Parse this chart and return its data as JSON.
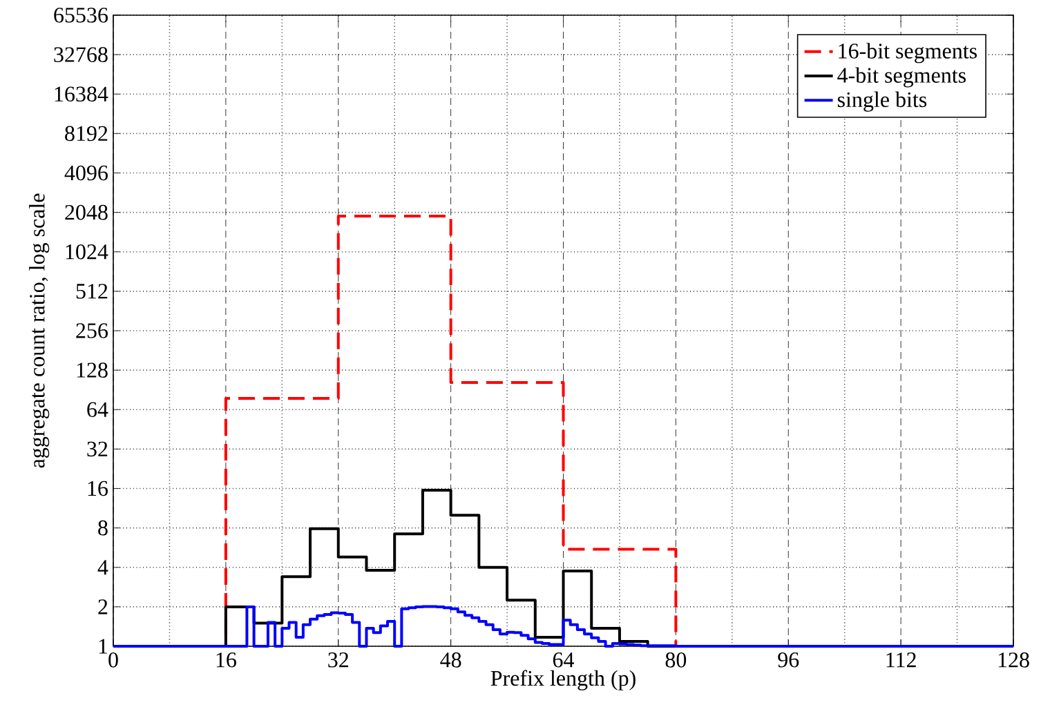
{
  "chart_data": {
    "type": "step",
    "xlabel": "Prefix length (p)",
    "ylabel": "aggregate count ratio, log scale",
    "xlim": [
      0,
      128
    ],
    "xticks": [
      0,
      16,
      32,
      48,
      64,
      80,
      96,
      112,
      128
    ],
    "ylim": [
      1,
      65536
    ],
    "yticks": [
      1,
      2,
      4,
      8,
      16,
      32,
      64,
      128,
      256,
      512,
      1024,
      2048,
      4096,
      8192,
      16384,
      32768,
      65536
    ],
    "log": "y",
    "grid": true,
    "legend": "top right",
    "marker": "none",
    "series": [
      {
        "name": "16-bit segments",
        "color": "#ff0000",
        "line_style": "dashed",
        "x": [
          0,
          16,
          32,
          48,
          64,
          80
        ],
        "values": [
          1,
          78,
          1920,
          103,
          5.5,
          1
        ]
      },
      {
        "name": "4-bit segments",
        "color": "#000000",
        "line_style": "solid",
        "x": [
          0,
          16,
          20,
          24,
          28,
          32,
          36,
          40,
          44,
          48,
          52,
          56,
          60,
          64,
          68,
          72,
          76,
          128
        ],
        "values": [
          1,
          2,
          1.5,
          3.4,
          7.9,
          4.8,
          3.8,
          7.2,
          15.5,
          10,
          4,
          2.25,
          1.17,
          3.75,
          1.37,
          1.09,
          1,
          1
        ]
      },
      {
        "name": "single bits",
        "color": "#0000ff",
        "line_style": "solid",
        "x": [
          0,
          19,
          20,
          22,
          23,
          24,
          25,
          26,
          27,
          28,
          29,
          30,
          31,
          32,
          33,
          34,
          35,
          36,
          37,
          38,
          39,
          40,
          41,
          42,
          43,
          44,
          45,
          46,
          47,
          48,
          49,
          50,
          51,
          52,
          53,
          54,
          55,
          56,
          57,
          58,
          59,
          60,
          61,
          62,
          63,
          64,
          65,
          66,
          67,
          68,
          69,
          70,
          71,
          72,
          73,
          74,
          75,
          80,
          128
        ],
        "values": [
          1,
          2,
          1,
          1.52,
          1,
          1.37,
          1.52,
          1.17,
          1.46,
          1.61,
          1.71,
          1.75,
          1.8,
          1.79,
          1.75,
          1.52,
          1,
          1.37,
          1.27,
          1.43,
          1.55,
          1,
          1.93,
          1.97,
          2,
          2.01,
          2.01,
          2,
          1.97,
          1.93,
          1.83,
          1.72,
          1.65,
          1.55,
          1.46,
          1.34,
          1.24,
          1.28,
          1.27,
          1.21,
          1.14,
          1.07,
          1.05,
          1.03,
          1.03,
          1.58,
          1.46,
          1.34,
          1.24,
          1.16,
          1.09,
          1,
          1.05,
          1.04,
          1.03,
          1.02,
          1.01,
          1,
          1
        ]
      }
    ]
  }
}
